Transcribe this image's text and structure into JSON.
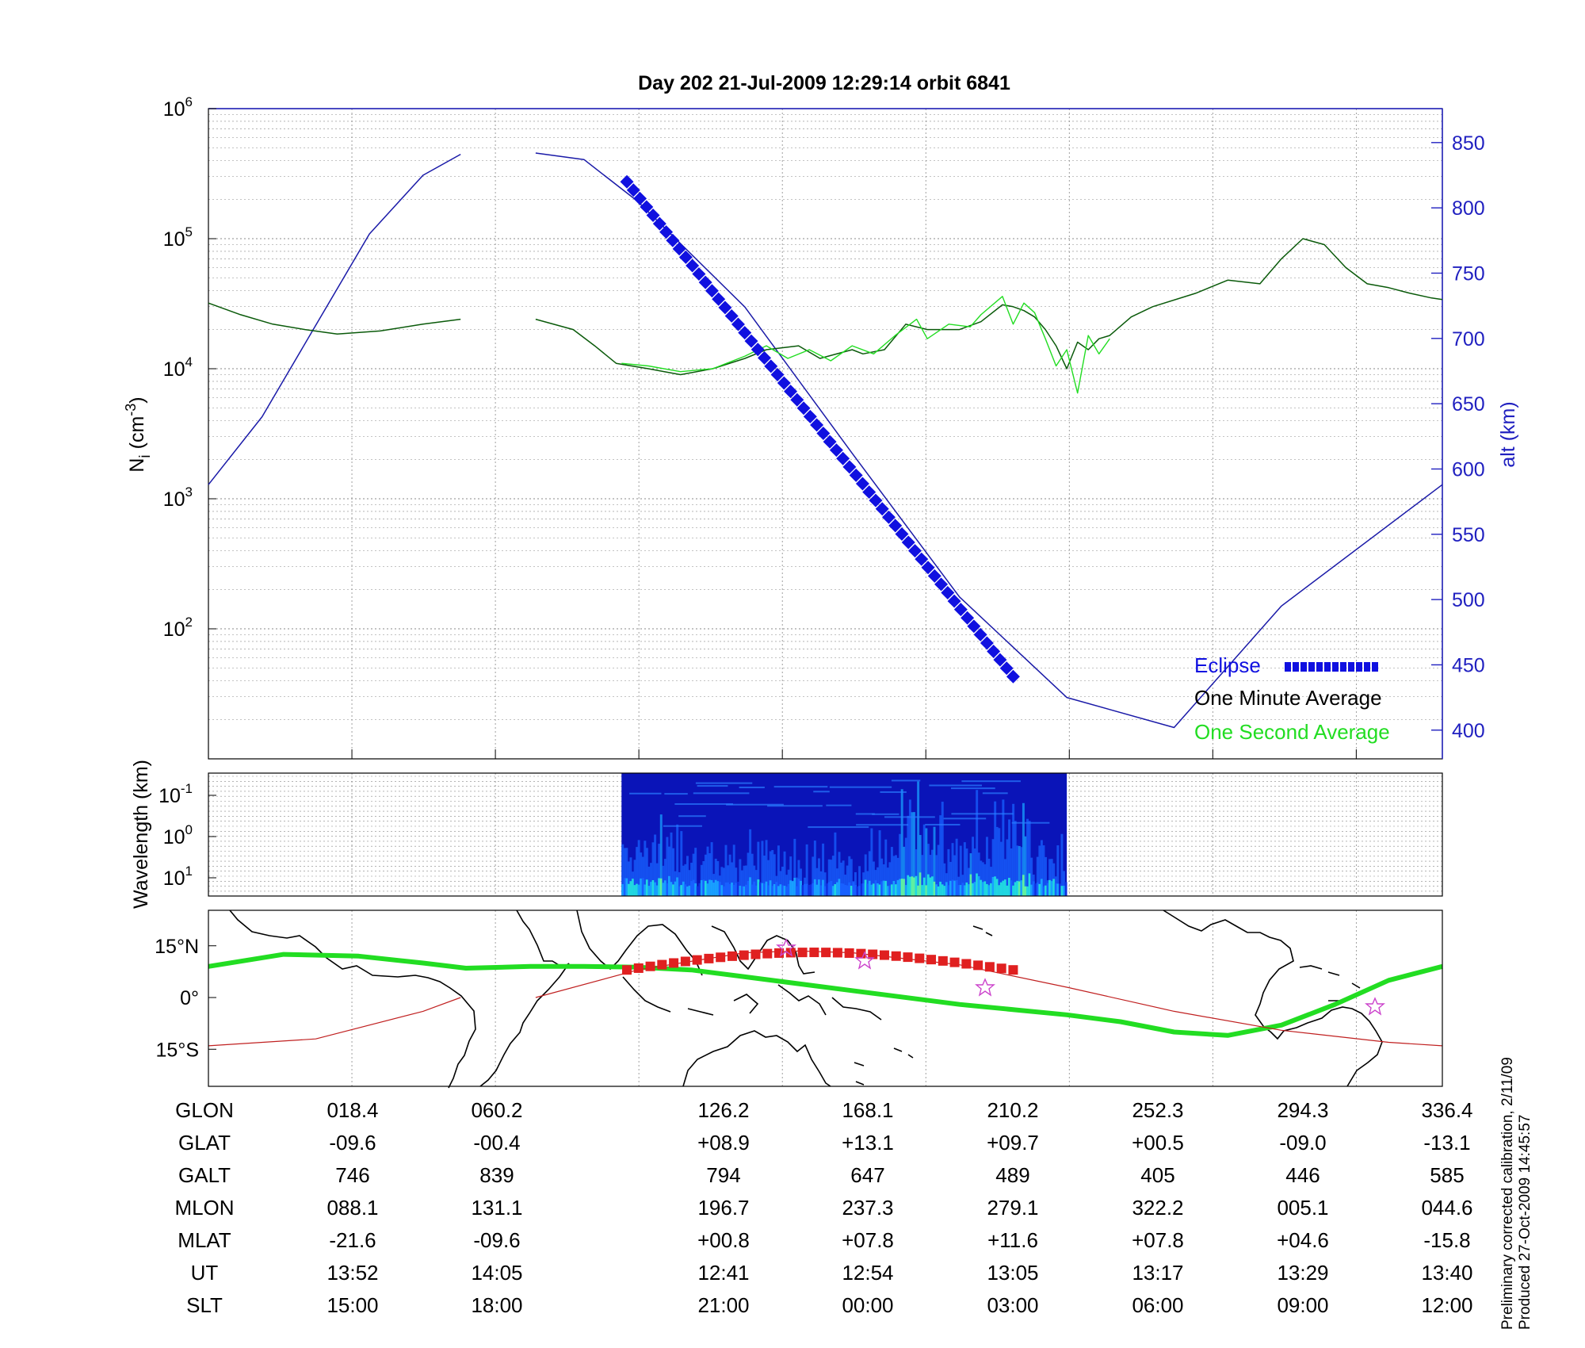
{
  "figure": {
    "title": "Day 202  21-Jul-2009 12:29:14   orbit 6841",
    "footnote_line1": "Preliminary corrected calibration, 2/11/09",
    "footnote_line2": "Produced 27-Oct-2009 14:45:57"
  },
  "chart_data": [
    {
      "type": "line",
      "panel": "density-altitude",
      "ylabel_left_main": "N",
      "ylabel_left_sub": "i",
      "ylabel_left_unit": " (cm",
      "ylabel_left_exp": "-3",
      "ylabel_left_close": ")",
      "ylabel_right": "alt (km)",
      "yscale_left": "log",
      "ylim_left": [
        10,
        1000000
      ],
      "yticks_left": [
        {
          "base": "10",
          "exp": "2",
          "value": 100
        },
        {
          "base": "10",
          "exp": "3",
          "value": 1000
        },
        {
          "base": "10",
          "exp": "4",
          "value": 10000
        },
        {
          "base": "10",
          "exp": "5",
          "value": 100000
        },
        {
          "base": "10",
          "exp": "6",
          "value": 1000000
        }
      ],
      "ylim_right": [
        378,
        876
      ],
      "yticks_right": [
        "400",
        "450",
        "500",
        "550",
        "600",
        "650",
        "700",
        "750",
        "800",
        "850"
      ],
      "grid": true,
      "legend_position": "bottom-right",
      "legend": [
        {
          "label": "Eclipse",
          "color": "#1010e0"
        },
        {
          "label": "One Minute Average",
          "color": "#000000"
        },
        {
          "label": "One Second Average",
          "color": "#22dd22"
        }
      ],
      "series": [
        {
          "name": "alt (km)",
          "axis": "right",
          "color": "#1a1aa8",
          "segments": [
            [
              [
                0,
                588
              ],
              [
                0.05,
                640
              ],
              [
                0.1,
                710
              ],
              [
                0.15,
                780
              ],
              [
                0.2,
                825
              ],
              [
                0.235,
                841
              ]
            ],
            [
              [
                0.305,
                842
              ],
              [
                0.35,
                837
              ],
              [
                0.4,
                805
              ],
              [
                0.5,
                724
              ],
              [
                0.6,
                612
              ],
              [
                0.7,
                502
              ],
              [
                0.8,
                425
              ],
              [
                0.9,
                402
              ],
              [
                1.0,
                495
              ],
              [
                1.15,
                588
              ]
            ]
          ]
        },
        {
          "name": "One Minute Average",
          "axis": "left",
          "color": "#0a5a0a",
          "segments": [
            [
              [
                0,
                32000
              ],
              [
                0.03,
                26000
              ],
              [
                0.06,
                22000
              ],
              [
                0.09,
                20000
              ],
              [
                0.12,
                18500
              ],
              [
                0.16,
                19500
              ],
              [
                0.2,
                22000
              ],
              [
                0.235,
                24000
              ]
            ],
            [
              [
                0.305,
                24000
              ],
              [
                0.34,
                20000
              ],
              [
                0.36,
                15000
              ],
              [
                0.38,
                11000
              ],
              [
                0.41,
                10000
              ],
              [
                0.44,
                9000
              ],
              [
                0.47,
                10000
              ],
              [
                0.5,
                12000
              ],
              [
                0.52,
                14000
              ],
              [
                0.55,
                15000
              ],
              [
                0.57,
                12000
              ],
              [
                0.6,
                14000
              ],
              [
                0.61,
                13000
              ],
              [
                0.63,
                14000
              ],
              [
                0.65,
                22000
              ],
              [
                0.67,
                20000
              ],
              [
                0.7,
                20000
              ],
              [
                0.72,
                23000
              ],
              [
                0.74,
                31000
              ],
              [
                0.75,
                30000
              ],
              [
                0.76,
                28000
              ],
              [
                0.77,
                25000
              ],
              [
                0.78,
                20000
              ],
              [
                0.79,
                15000
              ],
              [
                0.8,
                10000
              ],
              [
                0.81,
                16000
              ],
              [
                0.82,
                14000
              ],
              [
                0.83,
                17000
              ],
              [
                0.84,
                18000
              ],
              [
                0.86,
                25000
              ],
              [
                0.88,
                30000
              ],
              [
                0.92,
                38000
              ],
              [
                0.95,
                48000
              ],
              [
                0.98,
                45000
              ],
              [
                1.0,
                70000
              ],
              [
                1.02,
                100000
              ],
              [
                1.04,
                90000
              ],
              [
                1.06,
                60000
              ],
              [
                1.08,
                45000
              ],
              [
                1.1,
                42000
              ],
              [
                1.12,
                38000
              ],
              [
                1.14,
                35000
              ],
              [
                1.15,
                34000
              ]
            ]
          ]
        },
        {
          "name": "One Second Average",
          "axis": "left",
          "color": "#22dd22",
          "segments": [
            [
              [
                0.385,
                11000
              ],
              [
                0.41,
                10500
              ],
              [
                0.44,
                9500
              ],
              [
                0.47,
                10000
              ],
              [
                0.5,
                12500
              ],
              [
                0.52,
                15000
              ],
              [
                0.54,
                12000
              ],
              [
                0.56,
                14000
              ],
              [
                0.58,
                11500
              ],
              [
                0.6,
                15000
              ],
              [
                0.62,
                13000
              ],
              [
                0.64,
                18000
              ],
              [
                0.66,
                24000
              ],
              [
                0.67,
                17000
              ],
              [
                0.69,
                22000
              ],
              [
                0.71,
                21000
              ],
              [
                0.72,
                26000
              ],
              [
                0.74,
                36000
              ],
              [
                0.75,
                22000
              ],
              [
                0.76,
                32000
              ],
              [
                0.77,
                27000
              ],
              [
                0.78,
                17000
              ],
              [
                0.79,
                10500
              ],
              [
                0.8,
                14000
              ],
              [
                0.81,
                6500
              ],
              [
                0.82,
                18000
              ],
              [
                0.83,
                13000
              ],
              [
                0.84,
                17000
              ]
            ]
          ]
        },
        {
          "name": "Eclipse",
          "axis": "right",
          "color": "#1010e0",
          "points_from_to": [
            [
              0.39,
              820
            ],
            [
              0.75,
              441
            ]
          ],
          "marker_count": 60
        }
      ]
    },
    {
      "type": "heatmap",
      "panel": "spectrogram",
      "ylabel": "Wavelength (km)",
      "yscale": "log",
      "yticks": [
        {
          "base": "10",
          "exp": "-1"
        },
        {
          "base": "10",
          "exp": "0"
        },
        {
          "base": "10",
          "exp": "1"
        }
      ],
      "x_coverage": [
        0.385,
        0.8
      ],
      "colormap": "jet"
    },
    {
      "type": "line",
      "panel": "ground-track-map",
      "yticks": [
        "15°N",
        "0°",
        "15°S"
      ],
      "ylim": [
        -30,
        30
      ],
      "series": [
        {
          "name": "magnetic-equator",
          "color": "#22dd22",
          "points": [
            [
              0,
              9
            ],
            [
              0.07,
              12.5
            ],
            [
              0.14,
              12
            ],
            [
              0.2,
              10
            ],
            [
              0.24,
              8.5
            ],
            [
              0.3,
              9
            ],
            [
              0.35,
              9
            ],
            [
              0.4,
              8.8
            ],
            [
              0.45,
              8
            ],
            [
              0.5,
              6
            ],
            [
              0.6,
              2
            ],
            [
              0.7,
              -2
            ],
            [
              0.8,
              -5
            ],
            [
              0.85,
              -7
            ],
            [
              0.9,
              -10
            ],
            [
              0.95,
              -11
            ],
            [
              1.0,
              -8
            ],
            [
              1.05,
              -2
            ],
            [
              1.1,
              5
            ],
            [
              1.15,
              9
            ]
          ]
        },
        {
          "name": "ground-track",
          "color": "#c02020",
          "segments": [
            [
              [
                0,
                -14
              ],
              [
                0.1,
                -12
              ],
              [
                0.2,
                -4
              ],
              [
                0.235,
                0
              ]
            ],
            [
              [
                0.305,
                0
              ],
              [
                0.4,
                8
              ],
              [
                0.5,
                13
              ],
              [
                0.55,
                13.5
              ],
              [
                0.6,
                13
              ],
              [
                0.7,
                9.5
              ],
              [
                0.8,
                3
              ],
              [
                0.9,
                -4
              ],
              [
                1.0,
                -9.5
              ],
              [
                1.1,
                -13
              ],
              [
                1.15,
                -14
              ]
            ]
          ]
        },
        {
          "name": "eclipse-track",
          "color": "#e02020",
          "marker_count": 34,
          "x_coverage": [
            0.39,
            0.75
          ]
        }
      ]
    }
  ],
  "table": {
    "rows": [
      {
        "label": "GLON",
        "values": [
          "018.4",
          "060.2",
          "126.2",
          "168.1",
          "210.2",
          "252.3",
          "294.3",
          "336.4"
        ]
      },
      {
        "label": "GLAT",
        "values": [
          "-09.6",
          "-00.4",
          "+08.9",
          "+13.1",
          "+09.7",
          "+00.5",
          "-09.0",
          "-13.1"
        ]
      },
      {
        "label": "GALT",
        "values": [
          "746",
          "839",
          "794",
          "647",
          "489",
          "405",
          "446",
          "585"
        ]
      },
      {
        "label": "MLON",
        "values": [
          "088.1",
          "131.1",
          "196.7",
          "237.3",
          "279.1",
          "322.2",
          "005.1",
          "044.6"
        ]
      },
      {
        "label": "MLAT",
        "values": [
          "-21.6",
          "-09.6",
          "+00.8",
          "+07.8",
          "+11.6",
          "+07.8",
          "+04.6",
          "-15.8"
        ]
      },
      {
        "label": "UT",
        "values": [
          "13:52",
          "14:05",
          "12:41",
          "12:54",
          "13:05",
          "13:17",
          "13:29",
          "13:40"
        ]
      },
      {
        "label": "SLT",
        "values": [
          "15:00",
          "18:00",
          "21:00",
          "00:00",
          "03:00",
          "06:00",
          "09:00",
          "12:00"
        ]
      }
    ]
  }
}
